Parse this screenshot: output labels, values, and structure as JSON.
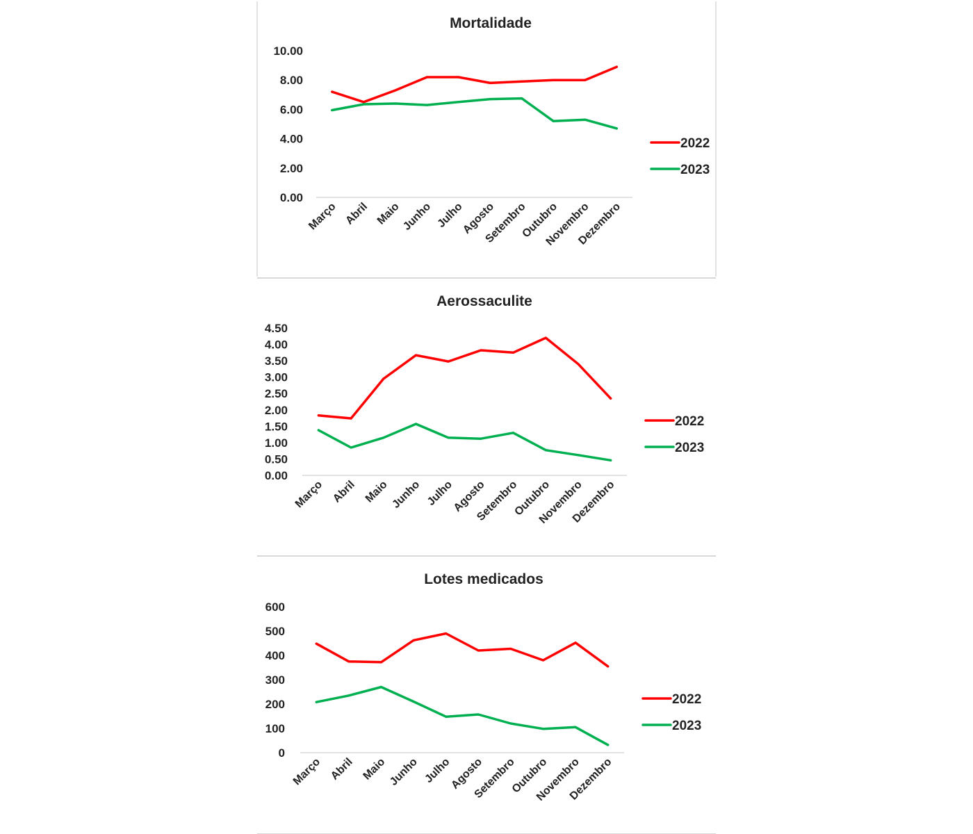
{
  "series_colors": {
    "2022": "#ff0000",
    "2023": "#00b050"
  },
  "chart_data": [
    {
      "type": "line",
      "title": "Mortalidade",
      "categories": [
        "Março",
        "Abril",
        "Maio",
        "Junho",
        "Julho",
        "Agosto",
        "Setembro",
        "Outubro",
        "Novembro",
        "Dezembro"
      ],
      "ylim": [
        0,
        10
      ],
      "yticks": [
        "0.00",
        "2.00",
        "4.00",
        "6.00",
        "8.00",
        "10.00"
      ],
      "series": [
        {
          "name": "2022",
          "color": "#ff0000",
          "values": [
            7.2,
            6.5,
            7.3,
            8.2,
            8.2,
            7.8,
            7.9,
            8.0,
            8.0,
            8.9
          ]
        },
        {
          "name": "2023",
          "color": "#00b050",
          "values": [
            5.95,
            6.35,
            6.4,
            6.3,
            6.5,
            6.7,
            6.75,
            5.2,
            5.3,
            4.7
          ]
        }
      ],
      "grid": false,
      "legend": "right"
    },
    {
      "type": "line",
      "title": "Aerossaculite",
      "categories": [
        "Março",
        "Abril",
        "Maio",
        "Junho",
        "Julho",
        "Agosto",
        "Setembro",
        "Outubro",
        "Novembro",
        "Dezembro"
      ],
      "ylim": [
        0,
        4.5
      ],
      "yticks": [
        "0.00",
        "0.50",
        "1.00",
        "1.50",
        "2.00",
        "2.50",
        "3.00",
        "3.50",
        "4.00",
        "4.50"
      ],
      "series": [
        {
          "name": "2022",
          "color": "#ff0000",
          "values": [
            1.83,
            1.74,
            2.95,
            3.67,
            3.48,
            3.82,
            3.75,
            4.2,
            3.4,
            2.35
          ]
        },
        {
          "name": "2023",
          "color": "#00b050",
          "values": [
            1.38,
            0.85,
            1.15,
            1.57,
            1.15,
            1.12,
            1.3,
            0.77,
            0.62,
            0.46
          ]
        }
      ],
      "grid": false,
      "legend": "right"
    },
    {
      "type": "line",
      "title": "Lotes medicados",
      "categories": [
        "Março",
        "Abril",
        "Maio",
        "Junho",
        "Julho",
        "Agosto",
        "Setembro",
        "Outubro",
        "Novembro",
        "Dezembro"
      ],
      "ylim": [
        0,
        600
      ],
      "yticks": [
        "0",
        "100",
        "200",
        "300",
        "400",
        "500",
        "600"
      ],
      "series": [
        {
          "name": "2022",
          "color": "#ff0000",
          "values": [
            448,
            375,
            372,
            462,
            490,
            420,
            427,
            380,
            452,
            355
          ]
        },
        {
          "name": "2023",
          "color": "#00b050",
          "values": [
            208,
            235,
            270,
            210,
            148,
            157,
            120,
            98,
            105,
            32
          ]
        }
      ],
      "grid": false,
      "legend": "right"
    }
  ]
}
